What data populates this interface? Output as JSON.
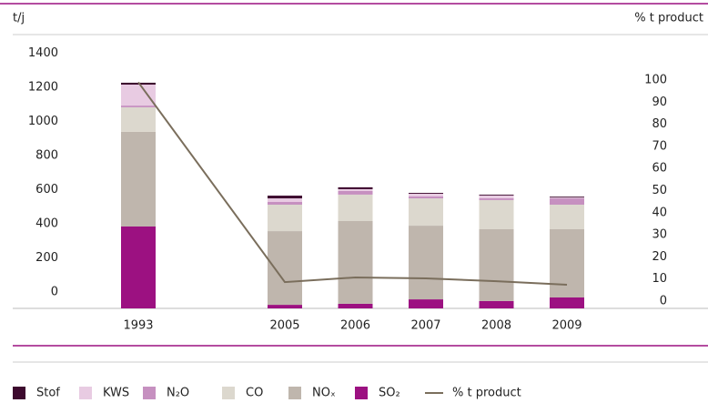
{
  "chart_data": {
    "type": "bar",
    "stacked": true,
    "ylabel": "t/j",
    "y2label": "% t product",
    "categories": [
      "1993",
      "2005",
      "2006",
      "2007",
      "2008",
      "2009"
    ],
    "series": [
      {
        "name": "Stof",
        "color": "#3d0a2e",
        "values": [
          11,
          16,
          11,
          5,
          5,
          5
        ]
      },
      {
        "name": "KWS",
        "color": "#e8cbe2",
        "values": [
          123,
          21,
          11,
          16,
          16,
          5
        ]
      },
      {
        "name": "N₂O",
        "color": "#c690c0",
        "values": [
          10,
          16,
          21,
          11,
          11,
          37
        ]
      },
      {
        "name": "CO",
        "color": "#dcd8ce",
        "values": [
          144,
          155,
          155,
          160,
          171,
          144
        ]
      },
      {
        "name": "NOₓ",
        "color": "#bfb6ad",
        "values": [
          555,
          432,
          485,
          432,
          421,
          400
        ]
      },
      {
        "name": "SO₂",
        "color": "#9c1181",
        "values": [
          480,
          21,
          27,
          53,
          43,
          64
        ]
      },
      {
        "name": "% t product",
        "color": "#7a6e5c",
        "axis": "y2",
        "values": [
          99,
          8.6,
          10.7,
          10.3,
          9,
          7.4
        ]
      }
    ],
    "ylim": [
      0,
      1400
    ],
    "yticks": [
      0,
      200,
      400,
      600,
      800,
      1000,
      1200,
      1400
    ],
    "y2lim": [
      0,
      100
    ],
    "y2ticks": [
      0,
      10,
      20,
      30,
      40,
      50,
      60,
      70,
      80,
      90,
      100
    ],
    "grid": false
  }
}
